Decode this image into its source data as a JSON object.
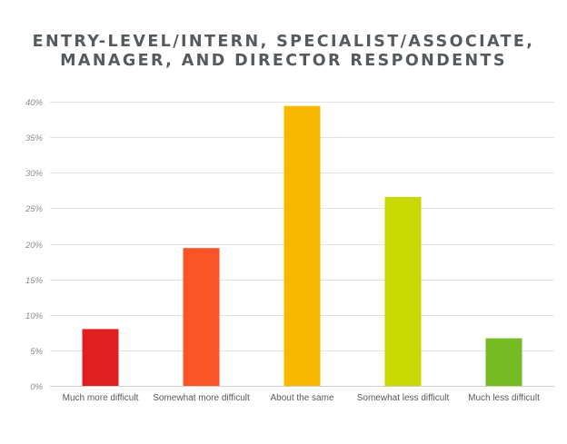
{
  "chart_data": {
    "type": "bar",
    "title": "ENTRY-LEVEL/INTERN, SPECIALIST/ASSOCIATE,\nMANAGER, AND DIRECTOR RESPONDENTS",
    "xlabel": "",
    "ylabel": "",
    "categories": [
      "Much more difficult",
      "Somewhat more difficult",
      "About the same",
      "Somewhat less difficult",
      "Much less difficult"
    ],
    "values": [
      8,
      19.4,
      39.4,
      26.6,
      6.7
    ],
    "bar_colors": [
      "#e02020",
      "#fb5427",
      "#f9b800",
      "#c9d800",
      "#76bb24"
    ],
    "ylim": [
      0,
      40
    ],
    "yticks": [
      0,
      5,
      10,
      15,
      20,
      25,
      30,
      35,
      40
    ],
    "ytick_labels": [
      "0%",
      "5%",
      "10%",
      "15%",
      "20%",
      "25%",
      "30%",
      "35%",
      "40%"
    ],
    "grid": true,
    "legend": "none"
  }
}
